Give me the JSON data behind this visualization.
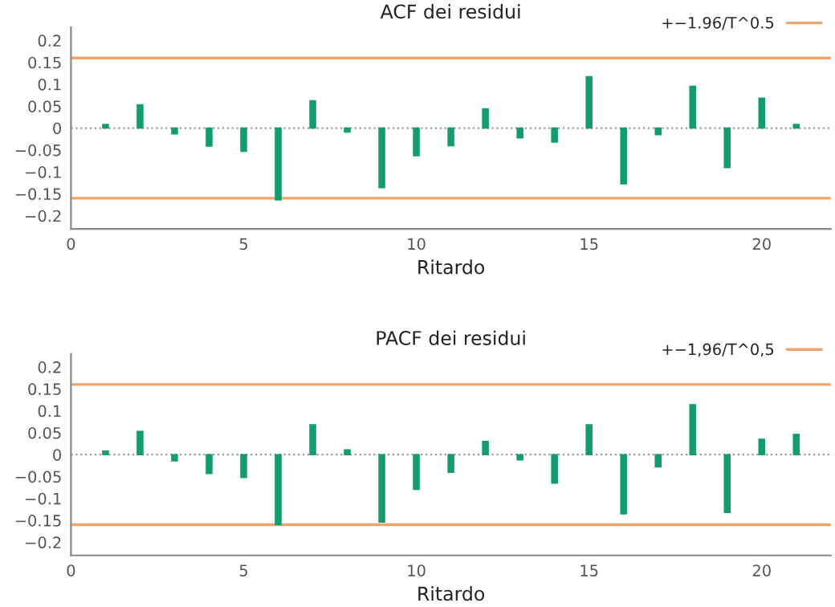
{
  "chart_data": [
    {
      "type": "bar",
      "title": "ACF dei residui",
      "xlabel": "Ritardo",
      "x": [
        1,
        2,
        3,
        4,
        5,
        6,
        7,
        8,
        9,
        10,
        11,
        12,
        13,
        14,
        15,
        16,
        17,
        18,
        19,
        20,
        21
      ],
      "series": [
        {
          "color": "#139d6c",
          "values": [
            0.008,
            0.053,
            -0.013,
            -0.041,
            -0.053,
            -0.164,
            0.062,
            -0.009,
            -0.136,
            -0.063,
            -0.04,
            0.044,
            -0.022,
            -0.032,
            0.117,
            -0.127,
            -0.015,
            0.095,
            -0.09,
            0.068,
            0.008
          ]
        }
      ],
      "xlim": [
        0,
        22
      ],
      "xticks": [
        0,
        5,
        10,
        15,
        20
      ],
      "ylim": [
        -0.23,
        0.23
      ],
      "yticks": [
        {
          "value": -0.2,
          "label": "−0.2"
        },
        {
          "value": -0.15,
          "label": "−0.15"
        },
        {
          "value": -0.1,
          "label": "−0.1"
        },
        {
          "value": -0.05,
          "label": "−0.05"
        },
        0,
        0.05,
        0.1,
        0.15,
        0.2
      ],
      "ref_lines": [
        {
          "axis": "y",
          "value": 0.16,
          "label": "+−1.96/T^0.5",
          "color": "#f0a46c"
        },
        {
          "axis": "y",
          "value": -0.16,
          "color": "#f0a46c"
        },
        {
          "axis": "y",
          "value": 0,
          "color": "#9a9a9a",
          "line_style": "dotted"
        }
      ],
      "legend": "top right",
      "grid": false
    },
    {
      "type": "bar",
      "title": "PACF dei residui",
      "xlabel": "Ritardo",
      "x": [
        1,
        2,
        3,
        4,
        5,
        6,
        7,
        8,
        9,
        10,
        11,
        12,
        13,
        14,
        15,
        16,
        17,
        18,
        19,
        20,
        21
      ],
      "series": [
        {
          "color": "#139d6c",
          "values": [
            0.008,
            0.053,
            -0.014,
            -0.043,
            -0.052,
            -0.16,
            0.068,
            0.011,
            -0.154,
            -0.079,
            -0.04,
            0.03,
            -0.012,
            -0.065,
            0.068,
            -0.135,
            -0.028,
            0.114,
            -0.132,
            0.035,
            0.046
          ]
        }
      ],
      "xlim": [
        0,
        22
      ],
      "xticks": [
        0,
        5,
        10,
        15,
        20
      ],
      "ylim": [
        -0.23,
        0.23
      ],
      "yticks": [
        {
          "value": -0.2,
          "label": "−0.2"
        },
        {
          "value": -0.15,
          "label": "−0.15"
        },
        {
          "value": -0.1,
          "label": "−0.1"
        },
        {
          "value": -0.05,
          "label": "−0.05"
        },
        0,
        0.05,
        0.1,
        0.15,
        0.2
      ],
      "ref_lines": [
        {
          "axis": "y",
          "value": 0.16,
          "label": "+−1,96/T^0,5",
          "color": "#f0a46c"
        },
        {
          "axis": "y",
          "value": -0.16,
          "color": "#f0a46c"
        },
        {
          "axis": "y",
          "value": 0,
          "color": "#9a9a9a",
          "line_style": "dotted"
        }
      ],
      "legend": "top right",
      "grid": false
    }
  ]
}
